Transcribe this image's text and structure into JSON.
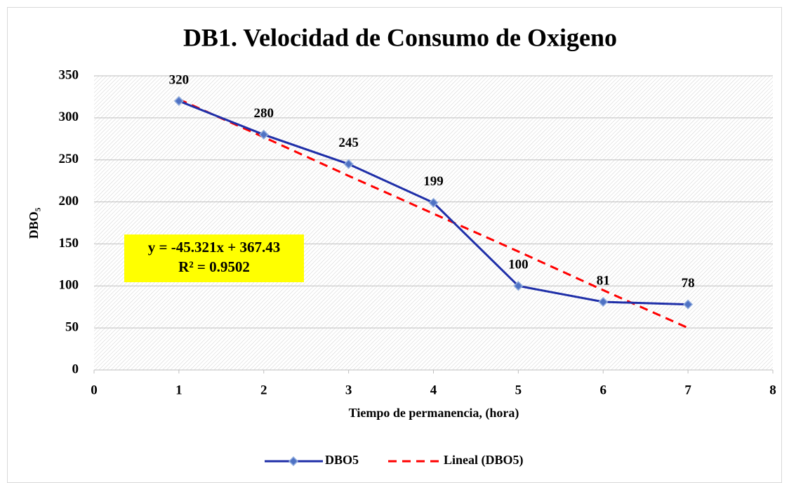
{
  "chart_data": {
    "type": "line",
    "title": "DB1. Velocidad de Consumo de Oxigeno",
    "x_label": "Tiempo de permanencia, (hora)",
    "y_label": "DBO₅",
    "x": [
      1,
      2,
      3,
      4,
      5,
      6,
      7
    ],
    "series": [
      {
        "name": "DBO5",
        "color": "#1f2fa8",
        "values": [
          320,
          280,
          245,
          199,
          100,
          81,
          78
        ]
      },
      {
        "name": "Lineal (DBO5)",
        "color": "#ff0000",
        "dashed": true,
        "values": [
          322,
          277,
          231,
          186,
          141,
          95,
          50
        ]
      }
    ],
    "annotations": [
      "y = -45.321x + 367.43",
      "R² = 0.9502"
    ],
    "xlim": [
      0,
      8
    ],
    "xticks": [
      0,
      1,
      2,
      3,
      4,
      5,
      6,
      7,
      8
    ],
    "ylim": [
      0,
      350
    ],
    "yticks": [
      0,
      50,
      100,
      150,
      200,
      250,
      300,
      350
    ],
    "grid": true,
    "legend": "bottom"
  }
}
